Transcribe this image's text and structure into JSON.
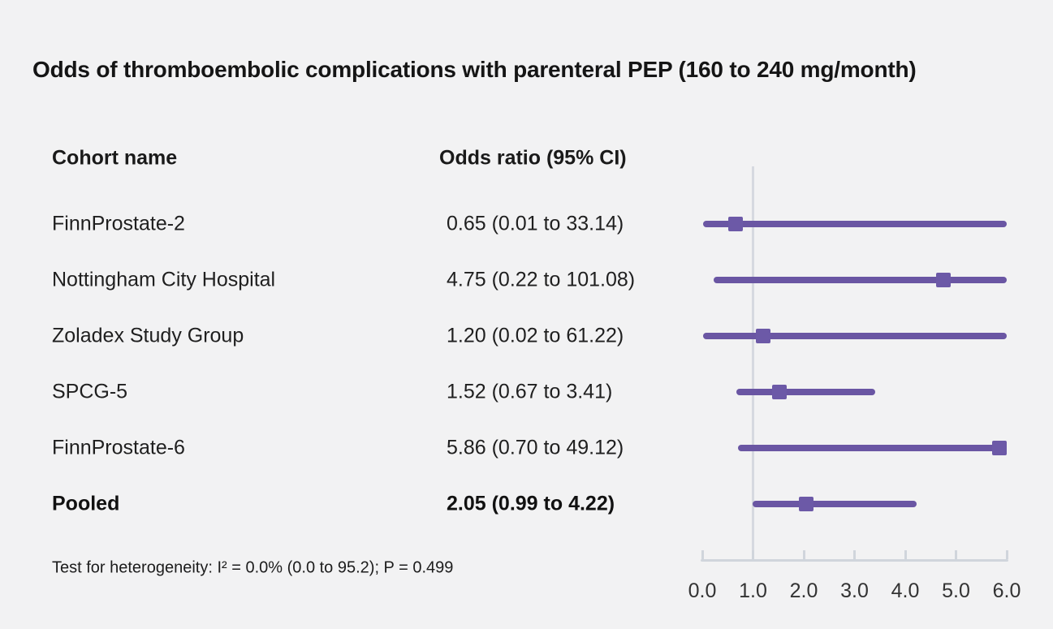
{
  "chart_data": {
    "type": "forest",
    "title": "Odds of thromboembolic complications with parenteral PEP (160 to 240 mg/month)",
    "columns": {
      "cohort": "Cohort name",
      "odds_ratio": "Odds ratio (95% CI)"
    },
    "rows": [
      {
        "name": "FinnProstate-2",
        "or_label": "0.65 (0.01 to 33.14)",
        "or": 0.65,
        "lo": 0.01,
        "hi": 33.14,
        "bold": false
      },
      {
        "name": "Nottingham City Hospital",
        "or_label": "4.75 (0.22 to 101.08)",
        "or": 4.75,
        "lo": 0.22,
        "hi": 101.08,
        "bold": false
      },
      {
        "name": "Zoladex Study Group",
        "or_label": "1.20 (0.02 to 61.22)",
        "or": 1.2,
        "lo": 0.02,
        "hi": 61.22,
        "bold": false
      },
      {
        "name": "SPCG-5",
        "or_label": "1.52 (0.67 to 3.41)",
        "or": 1.52,
        "lo": 0.67,
        "hi": 3.41,
        "bold": false
      },
      {
        "name": "FinnProstate-6",
        "or_label": "5.86 (0.70 to 49.12)",
        "or": 5.86,
        "lo": 0.7,
        "hi": 49.12,
        "bold": false
      },
      {
        "name": "Pooled",
        "or_label": "2.05 (0.99 to 4.22)",
        "or": 2.05,
        "lo": 0.99,
        "hi": 4.22,
        "bold": true
      }
    ],
    "footnote": "Test for heterogeneity: I² = 0.0% (0.0 to 95.2); P = 0.499",
    "axis": {
      "min": 0,
      "max": 6,
      "tick_labels": [
        "0.0",
        "1.0",
        "2.0",
        "3.0",
        "4.0",
        "5.0",
        "6.0"
      ],
      "reference_line": 1.0
    },
    "colors": {
      "ci_line": "#6a56a3",
      "marker": "#6c59a7",
      "reference_line": "#d6d9e0",
      "axis": "#d0d5dc",
      "background": "#f2f2f3",
      "text": "#1a1a1a"
    }
  }
}
